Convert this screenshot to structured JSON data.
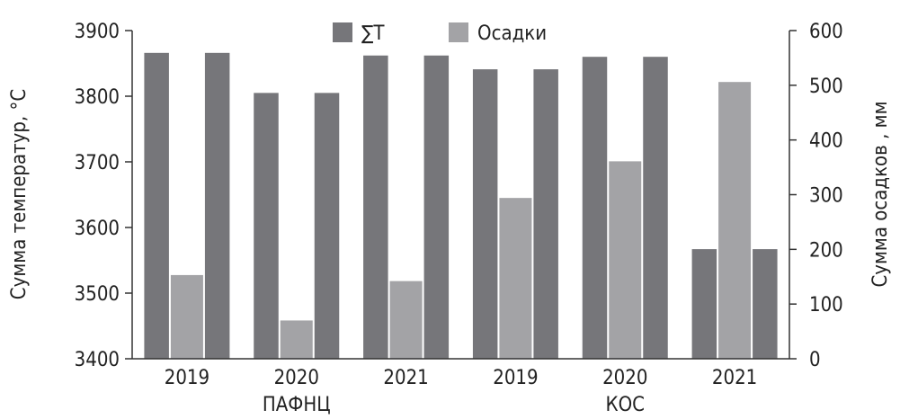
{
  "chart_data": {
    "type": "bar",
    "categories": [
      "2019",
      "2020",
      "2021",
      "2019",
      "2020",
      "2021"
    ],
    "groups": [
      {
        "label": "ПАФНЦ",
        "categories": [
          "2019",
          "2020",
          "2021"
        ]
      },
      {
        "label": "КОС",
        "categories": [
          "2019",
          "2020",
          "2021"
        ]
      }
    ],
    "series": [
      {
        "name": "∑T",
        "axis": "left",
        "color": "#76767a",
        "values": [
          3866,
          3805,
          3862,
          3841,
          3860,
          3567
        ]
      },
      {
        "name": "Осадки",
        "axis": "right",
        "color": "#a3a3a6",
        "values": [
          153,
          70,
          142,
          294,
          361,
          506
        ]
      }
    ],
    "ylabel": "Сумма температур, °С",
    "ylabel_right": "Сумма осадков , мм",
    "ylim": [
      3400,
      3900
    ],
    "ylim_right": [
      0,
      600
    ],
    "yticks": [
      "3400",
      "3500",
      "3600",
      "3700",
      "3800",
      "3900"
    ],
    "yticks_right": [
      "0",
      "100",
      "200",
      "300",
      "400",
      "500",
      "600"
    ],
    "legend_position": "top-center",
    "grid": false
  }
}
